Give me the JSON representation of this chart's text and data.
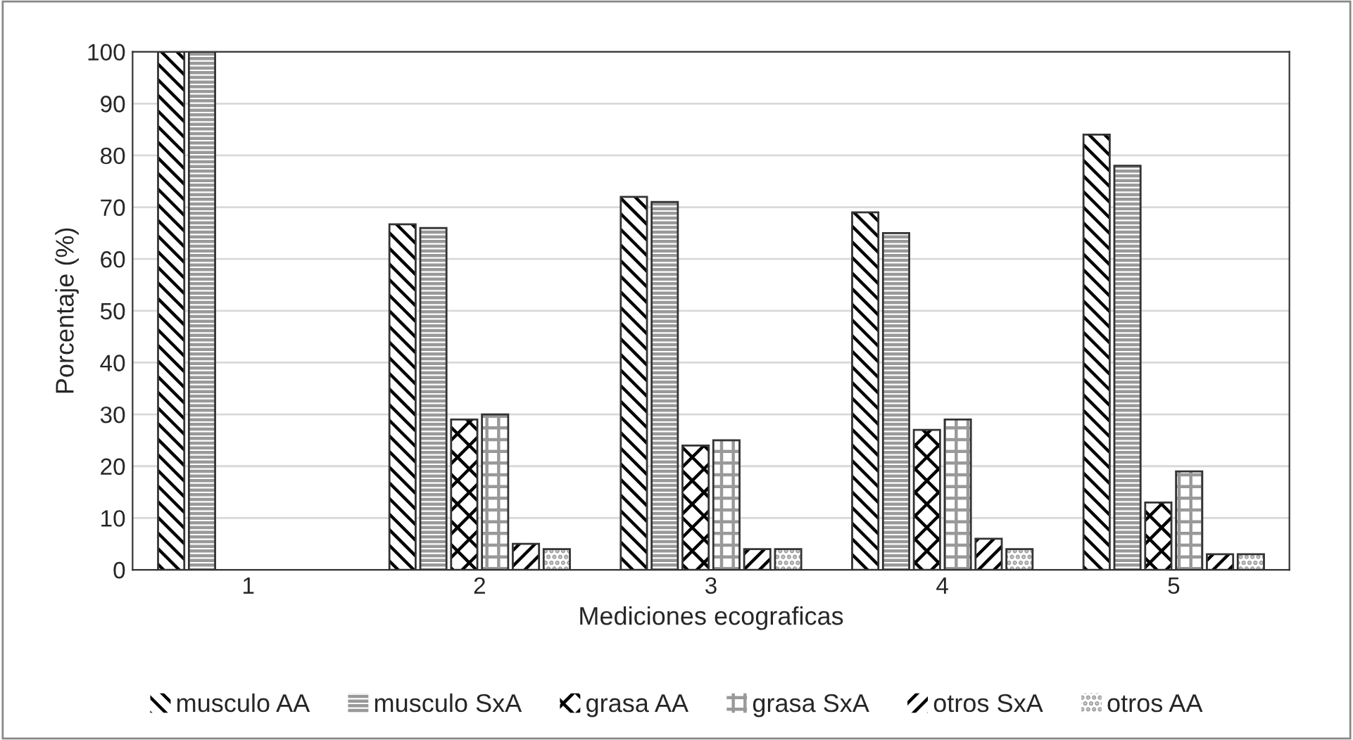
{
  "chart_data": {
    "type": "bar",
    "xlabel": "Mediciones ecograficas",
    "ylabel": "Porcentaje (%)",
    "categories": [
      "1",
      "2",
      "3",
      "4",
      "5"
    ],
    "series": [
      {
        "name": "musculo AA",
        "color": "#ffffff",
        "values": [
          100,
          66.7,
          72,
          69,
          84
        ]
      },
      {
        "name": "musculo SxA",
        "color": "#ffffff",
        "values": [
          100,
          66,
          71,
          65,
          78
        ]
      },
      {
        "name": "grasa AA",
        "color": "#ffffff",
        "values": [
          0,
          29,
          24,
          27,
          13
        ]
      },
      {
        "name": "grasa SxA",
        "color": "#ffffff",
        "values": [
          0,
          30,
          25,
          29,
          19
        ]
      },
      {
        "name": "otros SxA",
        "color": "#ffffff",
        "values": [
          0,
          5,
          4,
          6,
          3
        ]
      },
      {
        "name": "otros AA",
        "color": "#ffffff",
        "values": [
          0,
          4,
          4,
          4,
          3
        ]
      }
    ],
    "ylim": [
      0,
      100
    ],
    "yticks": [
      0,
      10,
      20,
      30,
      40,
      50,
      60,
      70,
      80,
      90,
      100
    ],
    "grid": "y",
    "legend": "bottom"
  }
}
